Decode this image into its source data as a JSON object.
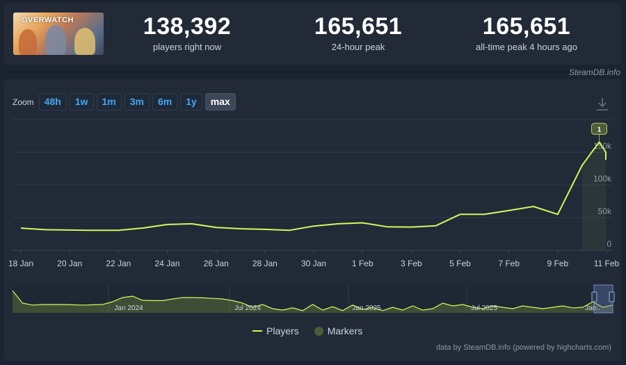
{
  "game": {
    "logo_text": "OVERWATCH"
  },
  "stats": [
    {
      "value": "138,392",
      "label": "players right now"
    },
    {
      "value": "165,651",
      "label": "24-hour peak"
    },
    {
      "value": "165,651",
      "label": "all-time peak 4 hours ago"
    }
  ],
  "credit_top": "SteamDB.info",
  "zoom": {
    "label": "Zoom",
    "buttons": [
      "48h",
      "1w",
      "1m",
      "3m",
      "6m",
      "1y",
      "max"
    ],
    "active": "max"
  },
  "legend": {
    "players": "Players",
    "markers": "Markers"
  },
  "credit_bottom": "data by SteamDB.info (powered by highcharts.com)",
  "colors": {
    "line": "#d4f95c",
    "marker": "#4d5d36",
    "zoom_text": "#45a7f1",
    "background": "#1b2230",
    "panel": "#222a38"
  },
  "chart_data": {
    "type": "line",
    "series": [
      {
        "name": "Players",
        "x": [
          0,
          0.15,
          1,
          2,
          3,
          4,
          5,
          6,
          7,
          8,
          9,
          10,
          11,
          12,
          13,
          14,
          15,
          16,
          17,
          18,
          19,
          20,
          21,
          22,
          23,
          23.7,
          24.15,
          24.5
        ],
        "values": [
          34000,
          33500,
          31500,
          31000,
          30500,
          30500,
          34000,
          39500,
          40500,
          35000,
          33000,
          32000,
          30500,
          37000,
          40500,
          42000,
          36000,
          35500,
          37500,
          55000,
          55000,
          61000,
          67000,
          55000,
          130000,
          165651,
          150000,
          138392
        ]
      }
    ],
    "markers": [
      {
        "label": "1",
        "x": 23.7,
        "y": 165651
      }
    ],
    "x_tick_labels": [
      "18 Jan",
      "20 Jan",
      "22 Jan",
      "24 Jan",
      "26 Jan",
      "28 Jan",
      "30 Jan",
      "1 Feb",
      "3 Feb",
      "5 Feb",
      "7 Feb",
      "9 Feb",
      "11 Feb"
    ],
    "x_tick_positions": [
      0,
      2,
      4,
      6,
      8,
      10,
      12,
      14,
      16,
      18,
      20,
      22,
      24
    ],
    "y_ticks": [
      0,
      50000,
      100000,
      150000
    ],
    "y_tick_labels": [
      "0",
      "50k",
      "100k",
      "150k"
    ],
    "ylim": [
      0,
      200000
    ],
    "grid": true,
    "legend_position": "bottom-center",
    "navigator": {
      "labels": [
        "Jan 2024",
        "Jul 2024",
        "Jan 2025",
        "Jul 2025",
        "Jan.."
      ],
      "values": [
        80,
        35,
        28,
        30,
        30,
        30,
        29,
        28,
        29,
        30,
        40,
        55,
        60,
        45,
        44,
        44,
        50,
        55,
        55,
        54,
        52,
        50,
        44,
        35,
        20,
        30,
        15,
        10,
        18,
        8,
        30,
        10,
        22,
        8,
        28,
        12,
        20,
        8,
        20,
        10,
        25,
        10,
        15,
        35,
        25,
        30,
        20,
        15,
        25,
        20,
        15,
        25,
        20,
        15,
        20,
        25,
        18,
        20,
        40,
        20,
        28
      ]
    }
  }
}
